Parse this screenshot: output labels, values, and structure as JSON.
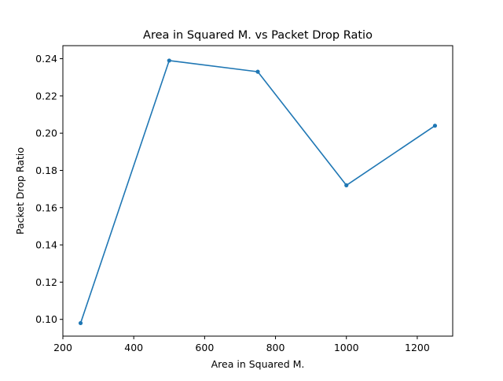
{
  "chart_data": {
    "type": "line",
    "title": "Area in Squared M. vs Packet Drop Ratio",
    "xlabel": "Area in Squared M.",
    "ylabel": "Packet Drop Ratio",
    "xlim": [
      200,
      1300
    ],
    "ylim": [
      0.091,
      0.247
    ],
    "xticks": [
      200,
      400,
      600,
      800,
      1000,
      1200
    ],
    "xtick_labels": [
      "200",
      "400",
      "600",
      "800",
      "1000",
      "1200"
    ],
    "yticks": [
      0.1,
      0.12,
      0.14,
      0.16,
      0.18,
      0.2,
      0.22,
      0.24
    ],
    "ytick_labels": [
      "0.10",
      "0.12",
      "0.14",
      "0.16",
      "0.18",
      "0.20",
      "0.22",
      "0.24"
    ],
    "grid": false,
    "series": [
      {
        "color": "#1f77b4",
        "marker": "circle",
        "x": [
          250,
          500,
          750,
          1000,
          1250
        ],
        "y": [
          0.098,
          0.239,
          0.233,
          0.172,
          0.204
        ]
      }
    ]
  }
}
